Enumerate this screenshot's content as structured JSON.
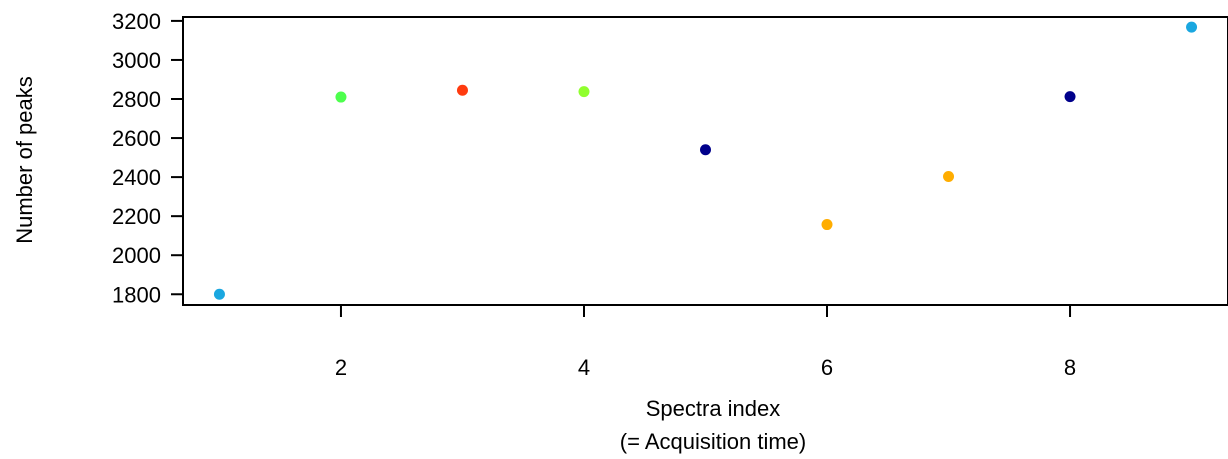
{
  "chart_data": {
    "type": "scatter",
    "title": "",
    "xlabel": "Spectra index",
    "xlabel_line2": "(= Acquisition time)",
    "ylabel": "Number of peaks",
    "xlim": [
      0.7,
      9.3
    ],
    "ylim": [
      1745,
      3220
    ],
    "xticks": [
      2,
      4,
      6,
      8
    ],
    "yticks": [
      1800,
      2000,
      2200,
      2400,
      2600,
      2800,
      3000,
      3200
    ],
    "grid": false,
    "x": [
      1,
      2,
      3,
      4,
      5,
      6,
      7,
      8,
      9
    ],
    "y": [
      1800,
      2810,
      2845,
      2838,
      2540,
      2157,
      2403,
      2812,
      3168
    ],
    "colors": [
      "#1aa7e0",
      "#4dff4d",
      "#ff3b0f",
      "#90ff2e",
      "#00008b",
      "#ffad00",
      "#ffad00",
      "#00008b",
      "#1aa7e0"
    ]
  }
}
